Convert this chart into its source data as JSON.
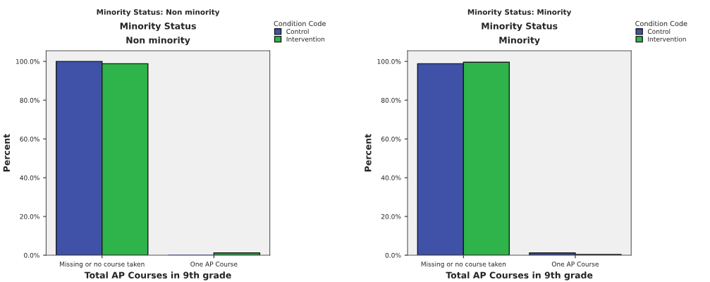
{
  "chart_data": [
    {
      "type": "bar",
      "title": "Minority Status: Non minority",
      "subtitle": "Minority Status",
      "annotations": [
        "Non minority"
      ],
      "xlabel": "Total AP Courses in 9th grade",
      "ylabel": "Percent",
      "legend_title": "Condition Code",
      "legend": "top right",
      "categories": [
        "Missing or no course taken",
        "One AP Course"
      ],
      "series": [
        {
          "name": "Control",
          "color": "#3f52a8",
          "values": [
            100.0,
            0.0
          ]
        },
        {
          "name": "Intervention",
          "color": "#2eb44a",
          "values": [
            98.8,
            1.2
          ]
        }
      ],
      "ylim": [
        0,
        105.5
      ],
      "yticks": [
        {
          "value": 0,
          "label": "0.0%"
        },
        {
          "value": 20,
          "label": "20.0%"
        },
        {
          "value": 40,
          "label": "40.0%"
        },
        {
          "value": 60,
          "label": "60.0%"
        },
        {
          "value": 80,
          "label": "80.0%"
        },
        {
          "value": 100,
          "label": "100.0%"
        }
      ],
      "grid": false
    },
    {
      "type": "bar",
      "title": "Minority Status: Minority",
      "subtitle": "Minority Status",
      "annotations": [
        "Minority"
      ],
      "xlabel": "Total AP Courses in 9th grade",
      "ylabel": "Percent",
      "legend_title": "Condition Code",
      "legend": "top right",
      "categories": [
        "Missing or no course taken",
        "One AP Course"
      ],
      "series": [
        {
          "name": "Control",
          "color": "#3f52a8",
          "values": [
            98.8,
            1.2
          ]
        },
        {
          "name": "Intervention",
          "color": "#2eb44a",
          "values": [
            99.6,
            0.4
          ]
        }
      ],
      "ylim": [
        0,
        105.5
      ],
      "yticks": [
        {
          "value": 0,
          "label": "0.0%"
        },
        {
          "value": 20,
          "label": "20.0%"
        },
        {
          "value": 40,
          "label": "40.0%"
        },
        {
          "value": 60,
          "label": "60.0%"
        },
        {
          "value": 80,
          "label": "80.0%"
        },
        {
          "value": 100,
          "label": "100.0%"
        }
      ],
      "grid": false
    }
  ]
}
